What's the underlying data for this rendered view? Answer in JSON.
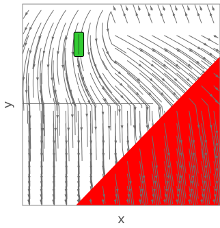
{
  "chart_data": {
    "type": "streamplot",
    "xlabel": "x",
    "ylabel": "y",
    "xlim": [
      0,
      1
    ],
    "ylim": [
      0,
      1
    ],
    "grid": false,
    "colors": {
      "stream": "#6f6f6f",
      "region_fill": "#ff0000",
      "marker_fill": "#33cc33",
      "marker_stroke": "#000000",
      "frame": "#888888"
    },
    "region": {
      "label": "",
      "vertices": [
        [
          0.27,
          0.0
        ],
        [
          1.0,
          0.0
        ],
        [
          1.0,
          0.74
        ]
      ]
    },
    "marker": {
      "label": "",
      "x_range": [
        0.26,
        0.31
      ],
      "y_range": [
        0.74,
        0.86
      ]
    }
  }
}
